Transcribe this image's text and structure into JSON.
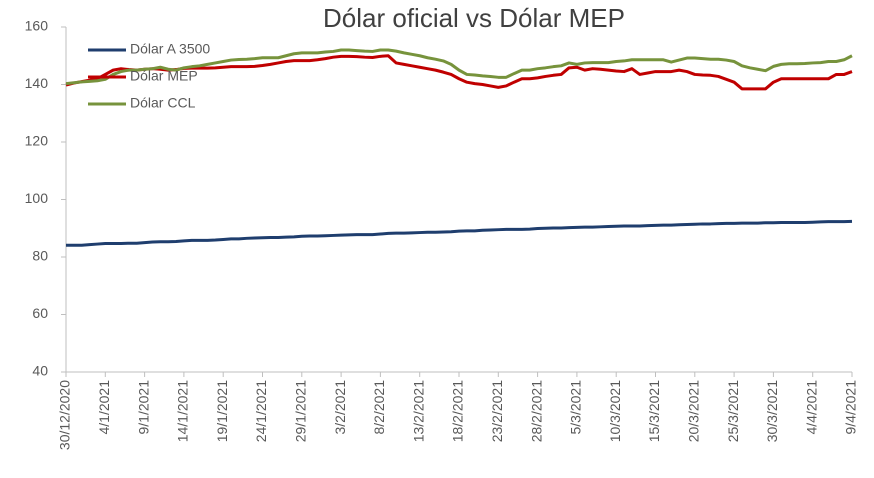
{
  "chart_data": {
    "type": "line",
    "title": "Dólar oficial vs Dólar MEP",
    "categories": [
      "30/12/2020",
      null,
      null,
      null,
      null,
      "4/1/2021",
      null,
      null,
      null,
      null,
      "9/1/2021",
      null,
      null,
      null,
      null,
      "14/1/2021",
      null,
      null,
      null,
      null,
      "19/1/2021",
      null,
      null,
      null,
      null,
      "24/1/2021",
      null,
      null,
      null,
      null,
      "29/1/2021",
      null,
      null,
      null,
      null,
      "3/2/2021",
      null,
      null,
      null,
      null,
      "8/2/2021",
      null,
      null,
      null,
      null,
      "13/2/2021",
      null,
      null,
      null,
      null,
      "18/2/2021",
      null,
      null,
      null,
      null,
      "23/2/2021",
      null,
      null,
      null,
      null,
      "28/2/2021",
      null,
      null,
      null,
      null,
      "5/3/2021",
      null,
      null,
      null,
      null,
      "10/3/2021",
      null,
      null,
      null,
      null,
      "15/3/2021",
      null,
      null,
      null,
      null,
      "20/3/2021",
      null,
      null,
      null,
      null,
      "25/3/2021",
      null,
      null,
      null,
      null,
      "30/3/2021",
      null,
      null,
      null,
      null,
      "4/4/2021",
      null,
      null,
      null,
      null,
      "9/4/2021"
    ],
    "series": [
      {
        "name": "Dólar A 3500",
        "color": "#1f3e6e",
        "values": [
          84.1,
          84.1,
          84.1,
          84.3,
          84.5,
          84.7,
          84.7,
          84.7,
          84.8,
          84.8,
          85.0,
          85.2,
          85.3,
          85.3,
          85.4,
          85.6,
          85.8,
          85.8,
          85.8,
          85.9,
          86.1,
          86.3,
          86.3,
          86.5,
          86.6,
          86.7,
          86.8,
          86.8,
          86.9,
          87.0,
          87.2,
          87.3,
          87.3,
          87.4,
          87.5,
          87.6,
          87.7,
          87.8,
          87.8,
          87.8,
          88.0,
          88.2,
          88.3,
          88.3,
          88.4,
          88.5,
          88.6,
          88.6,
          88.7,
          88.8,
          89.0,
          89.1,
          89.1,
          89.3,
          89.4,
          89.5,
          89.6,
          89.6,
          89.6,
          89.7,
          89.9,
          90.0,
          90.1,
          90.1,
          90.2,
          90.3,
          90.4,
          90.4,
          90.5,
          90.6,
          90.7,
          90.8,
          90.8,
          90.8,
          90.9,
          91.0,
          91.1,
          91.1,
          91.2,
          91.3,
          91.4,
          91.5,
          91.5,
          91.6,
          91.7,
          91.7,
          91.8,
          91.8,
          91.8,
          91.9,
          91.9,
          92.0,
          92.0,
          92.0,
          92.0,
          92.1,
          92.2,
          92.3,
          92.3,
          92.3,
          92.4
        ]
      },
      {
        "name": "Dólar MEP",
        "color": "#c00000",
        "values": [
          139.8,
          140.5,
          141.0,
          141.5,
          142.0,
          143.5,
          145.0,
          145.5,
          145.2,
          145.0,
          145.3,
          145.5,
          145.3,
          145.0,
          145.2,
          145.6,
          145.7,
          145.7,
          145.7,
          145.8,
          146.0,
          146.2,
          146.2,
          146.2,
          146.3,
          146.6,
          147.0,
          147.5,
          148.0,
          148.3,
          148.3,
          148.3,
          148.6,
          149.0,
          149.5,
          149.8,
          149.8,
          149.7,
          149.5,
          149.4,
          149.8,
          150.0,
          147.5,
          147.0,
          146.5,
          146.0,
          145.5,
          145.0,
          144.3,
          143.5,
          142.0,
          140.8,
          140.3,
          140.0,
          139.5,
          139.0,
          139.5,
          140.8,
          142.0,
          142.0,
          142.3,
          142.8,
          143.2,
          143.5,
          145.8,
          146.0,
          145.0,
          145.5,
          145.3,
          145.0,
          144.7,
          144.5,
          145.5,
          143.5,
          144.0,
          144.5,
          144.5,
          144.5,
          145.0,
          144.5,
          143.5,
          143.3,
          143.2,
          142.8,
          141.8,
          140.8,
          138.5,
          138.5,
          138.5,
          138.5,
          140.8,
          142.0,
          142.0,
          142.0,
          142.0,
          142.0,
          142.0,
          142.0,
          143.5,
          143.5,
          144.5
        ]
      },
      {
        "name": "Dólar CCL",
        "color": "#77933c",
        "values": [
          140.3,
          140.6,
          140.9,
          141.1,
          141.3,
          141.8,
          143.5,
          144.5,
          145.0,
          145.0,
          145.3,
          145.5,
          146.0,
          145.3,
          145.0,
          145.8,
          146.2,
          146.5,
          147.0,
          147.5,
          148.0,
          148.5,
          148.7,
          148.8,
          149.0,
          149.3,
          149.3,
          149.3,
          150.0,
          150.7,
          151.0,
          151.0,
          151.0,
          151.3,
          151.5,
          152.0,
          152.0,
          151.8,
          151.6,
          151.5,
          152.0,
          152.0,
          151.6,
          151.0,
          150.5,
          150.0,
          149.3,
          148.8,
          148.2,
          147.0,
          145.0,
          143.5,
          143.3,
          143.0,
          142.8,
          142.5,
          142.5,
          143.8,
          145.0,
          145.0,
          145.5,
          145.8,
          146.2,
          146.5,
          147.5,
          147.0,
          147.5,
          147.6,
          147.6,
          147.6,
          148.0,
          148.2,
          148.6,
          148.6,
          148.6,
          148.6,
          148.6,
          147.8,
          148.5,
          149.2,
          149.2,
          149.0,
          148.8,
          148.8,
          148.5,
          148.0,
          146.5,
          145.8,
          145.3,
          144.8,
          146.3,
          147.0,
          147.2,
          147.2,
          147.3,
          147.5,
          147.6,
          148.0,
          148.0,
          148.6,
          150.0
        ]
      }
    ],
    "ylim": [
      40,
      160
    ],
    "yticks": [
      40,
      60,
      80,
      100,
      120,
      140,
      160
    ],
    "legend": "upper left"
  }
}
